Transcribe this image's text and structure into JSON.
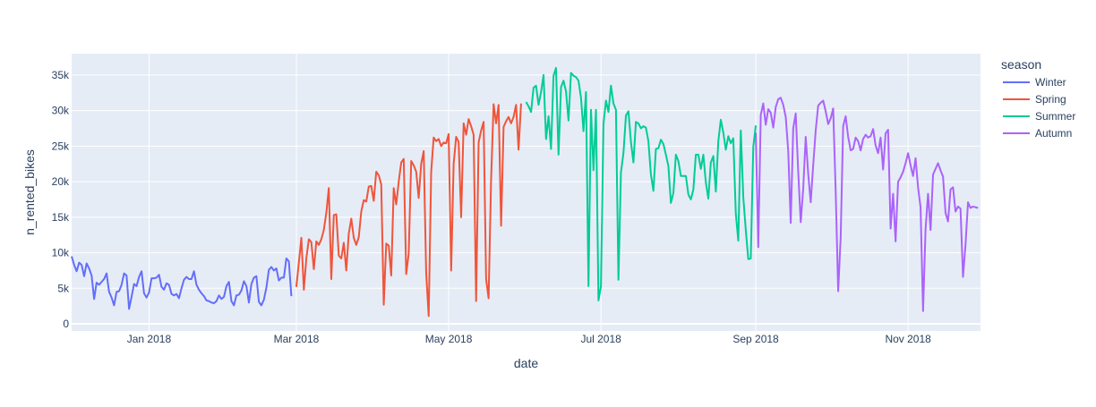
{
  "chart_data": {
    "type": "line",
    "xlabel": "date",
    "ylabel": "n_rented_bikes",
    "legend_title": "season",
    "legend_position": "right",
    "plot_bgcolor": "#e5ecf6",
    "grid": true,
    "ylim": [
      -1000,
      38000
    ],
    "xlim": [
      "2017-12-01",
      "2018-11-30"
    ],
    "y_ticks": [
      0,
      5000,
      10000,
      15000,
      20000,
      25000,
      30000,
      35000
    ],
    "y_tick_labels": [
      "0",
      "5k",
      "10k",
      "15k",
      "20k",
      "25k",
      "30k",
      "35k"
    ],
    "x_ticks": [
      "2018-01-01",
      "2018-03-01",
      "2018-05-01",
      "2018-07-01",
      "2018-09-01",
      "2018-11-01"
    ],
    "x_tick_labels": [
      "Jan 2018",
      "Mar 2018",
      "May 2018",
      "Jul 2018",
      "Sep 2018",
      "Nov 2018"
    ],
    "series": [
      {
        "name": "Winter",
        "color": "#636efa",
        "start": "2017-12-01",
        "values": [
          9500,
          8300,
          7400,
          8600,
          8300,
          6700,
          8500,
          7800,
          6800,
          3500,
          5800,
          5500,
          5900,
          6300,
          7100,
          4500,
          3700,
          2600,
          4500,
          4600,
          5500,
          7100,
          6800,
          2100,
          3800,
          5600,
          5300,
          6600,
          7400,
          4300,
          3700,
          4400,
          6400,
          6400,
          6500,
          6900,
          5200,
          4800,
          5700,
          5500,
          4200,
          4000,
          4200,
          3600,
          5000,
          6200,
          6600,
          6300,
          6300,
          7400,
          5500,
          4800,
          4300,
          3900,
          3300,
          3200,
          3000,
          2900,
          3200,
          4000,
          3500,
          3800,
          5300,
          5900,
          3200,
          2600,
          4000,
          4100,
          4700,
          6000,
          5300,
          3000,
          5600,
          6500,
          6700,
          3100,
          2600,
          3400,
          5100,
          7600,
          8000,
          7500,
          7800,
          6100,
          6500,
          6500,
          9200,
          8800,
          3900
        ]
      },
      {
        "name": "Spring",
        "color": "#ef553b",
        "start": "2018-03-01",
        "values": [
          5200,
          8600,
          12100,
          4800,
          9200,
          11900,
          11500,
          7700,
          11600,
          11100,
          11900,
          13200,
          15600,
          19100,
          6300,
          15300,
          15400,
          9600,
          9200,
          11400,
          7500,
          12700,
          14800,
          12100,
          11100,
          12200,
          15800,
          17400,
          17200,
          19300,
          19400,
          17300,
          21400,
          20900,
          19600,
          2700,
          11300,
          11000,
          6800,
          19100,
          16800,
          20000,
          22700,
          23200,
          7000,
          9900,
          22900,
          22300,
          21400,
          17700,
          22500,
          24300,
          7100,
          1100,
          21400,
          26200,
          25700,
          26000,
          25000,
          25500,
          25400,
          26700,
          7500,
          22500,
          26300,
          25600,
          15000,
          28200,
          26600,
          28800,
          27800,
          26600,
          3200,
          25500,
          27200,
          28400,
          6300,
          3600,
          20300,
          30900,
          28200,
          30800,
          13800,
          27700,
          28500,
          29100,
          28200,
          29100,
          30800,
          24500,
          31000
        ]
      },
      {
        "name": "Summer",
        "color": "#00cc96",
        "start": "2018-06-01",
        "values": [
          31200,
          30600,
          29800,
          33200,
          33500,
          30800,
          32600,
          35000,
          26000,
          29200,
          24600,
          34900,
          36000,
          23800,
          33300,
          34200,
          32700,
          28600,
          35300,
          34900,
          34700,
          34200,
          31800,
          27100,
          32600,
          5300,
          30100,
          21600,
          30100,
          3300,
          5300,
          28100,
          31400,
          29800,
          33500,
          31000,
          30100,
          6200,
          21300,
          24000,
          29300,
          29900,
          25600,
          22700,
          28400,
          28200,
          27500,
          27800,
          27600,
          25700,
          21000,
          18700,
          24600,
          24700,
          25900,
          25300,
          23800,
          22200,
          17000,
          18400,
          23800,
          22900,
          20800,
          20800,
          20800,
          18200,
          17500,
          18900,
          23800,
          23800,
          21800,
          23800,
          19900,
          17600,
          22700,
          23600,
          18600,
          25700,
          28700,
          26900,
          24500,
          26400,
          25400,
          26100,
          15500,
          11700,
          27200,
          17800,
          13200,
          9100,
          9200,
          24900,
          27900
        ]
      },
      {
        "name": "Autumn",
        "color": "#ab63fa",
        "start": "2018-09-01",
        "values": [
          26900,
          10800,
          29400,
          31000,
          28000,
          30200,
          29700,
          27600,
          30500,
          31600,
          31800,
          30800,
          29100,
          24300,
          14200,
          27500,
          29600,
          21400,
          14300,
          19000,
          26300,
          21100,
          17100,
          22300,
          27200,
          30700,
          31100,
          31400,
          29900,
          28100,
          28900,
          30300,
          18700,
          4600,
          12100,
          27800,
          29200,
          26300,
          24400,
          24600,
          26200,
          25700,
          24400,
          26000,
          26600,
          26200,
          26400,
          27400,
          25100,
          24000,
          26200,
          21700,
          26800,
          27300,
          13400,
          18300,
          11600,
          20000,
          20600,
          21400,
          22600,
          24000,
          22300,
          20800,
          23300,
          19200,
          16400,
          1800,
          13300,
          18300,
          13200,
          21000,
          21800,
          22600,
          21600,
          20700,
          15600,
          14400,
          18900,
          19200,
          15800,
          16500,
          16200,
          6600,
          11100,
          17100,
          16300,
          16500,
          16400,
          16300
        ]
      }
    ]
  }
}
